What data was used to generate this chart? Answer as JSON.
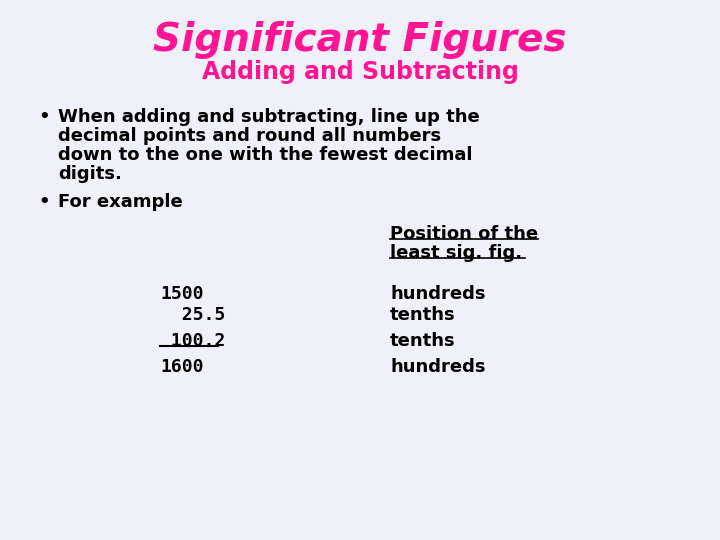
{
  "title": "Significant Figures",
  "subtitle": "Adding and Subtracting",
  "title_color": "#FF1493",
  "subtitle_color": "#FF1493",
  "background_color": "#F0F0F8",
  "bullet1_line1": "When adding and subtracting, line up the",
  "bullet1_line2": "decimal points and round all numbers",
  "bullet1_line3": "down to the one with the fewest decimal",
  "bullet1_line4": "digits.",
  "bullet2": "For example",
  "header_line1": "Position of the",
  "header_line2": "least sig. fig.",
  "numbers": [
    "1500",
    "  25.5",
    " 100.2",
    "1600"
  ],
  "positions": [
    "hundreds",
    "tenths",
    "tenths",
    "hundreds"
  ],
  "underline_row": 2,
  "text_color": "#000000",
  "font_size_title": 28,
  "font_size_subtitle": 17,
  "font_size_body": 13,
  "font_size_table": 13
}
